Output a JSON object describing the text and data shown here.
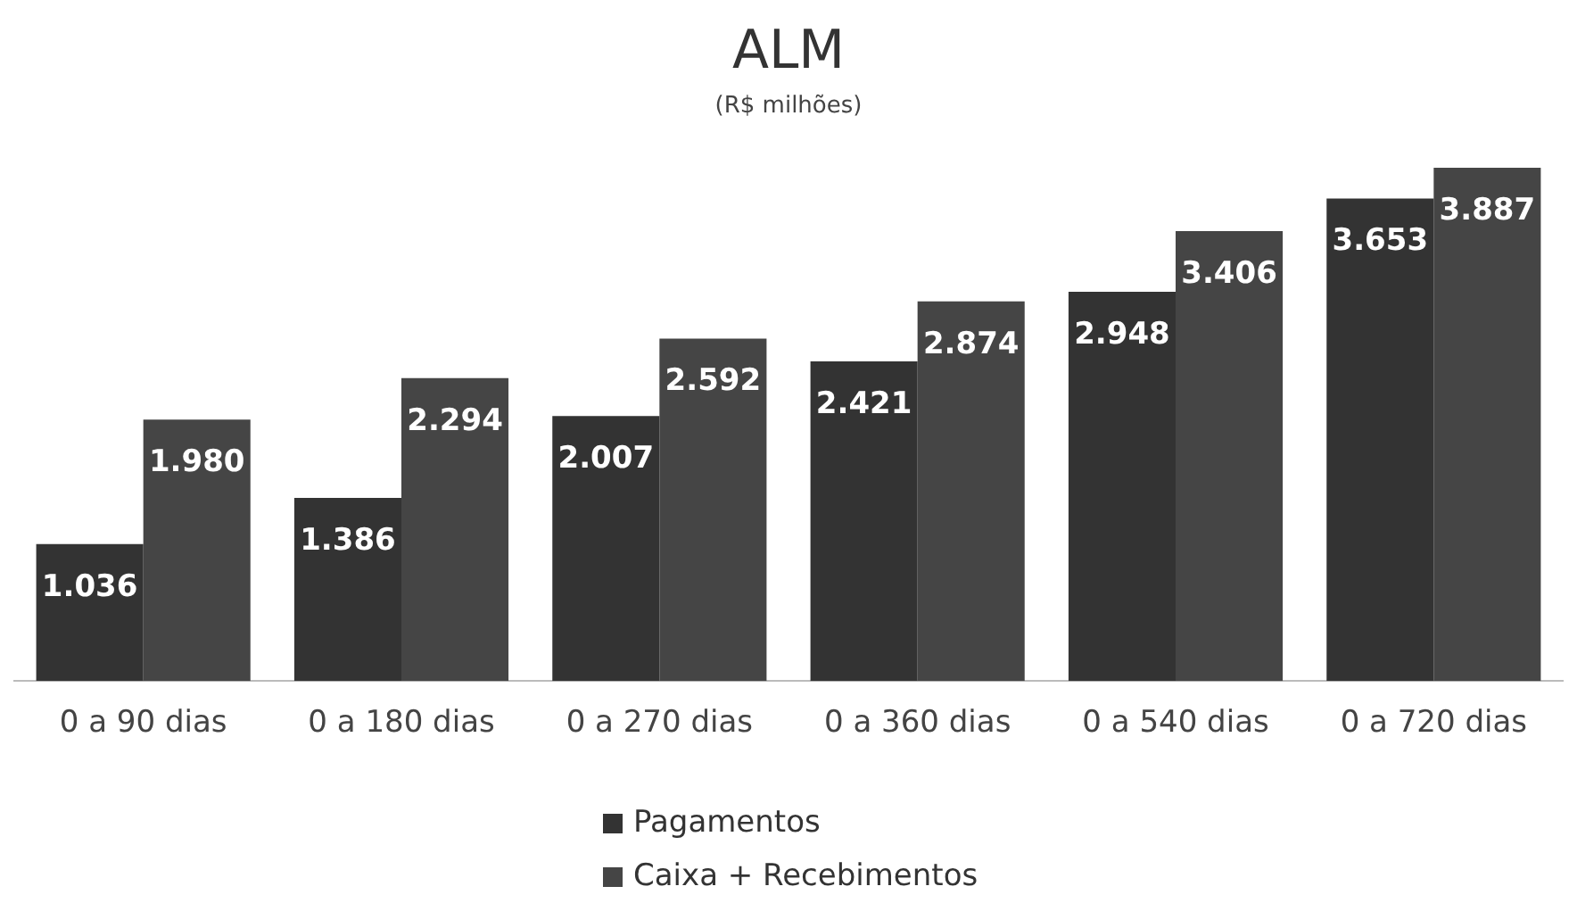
{
  "chart_data": {
    "type": "bar",
    "title": "ALM",
    "subtitle": "(R$ milhões)",
    "categories": [
      "0 a 90 dias",
      "0 a 180 dias",
      "0 a 270 dias",
      "0 a 360 dias",
      "0 a 540 dias",
      "0 a 720 dias"
    ],
    "series": [
      {
        "name": "Pagamentos",
        "color": "#333333",
        "values": [
          1036,
          1386,
          2007,
          2421,
          2948,
          3653
        ],
        "value_labels": [
          "1.036",
          "1.386",
          "2.007",
          "2.421",
          "2.948",
          "3.653"
        ]
      },
      {
        "name": "Caixa + Recebimentos",
        "color": "#454545",
        "values": [
          1980,
          2294,
          2592,
          2874,
          3406,
          3887
        ],
        "value_labels": [
          "1.980",
          "2.294",
          "2.592",
          "2.874",
          "3.406",
          "3.887"
        ]
      }
    ],
    "legend": "bottom"
  }
}
